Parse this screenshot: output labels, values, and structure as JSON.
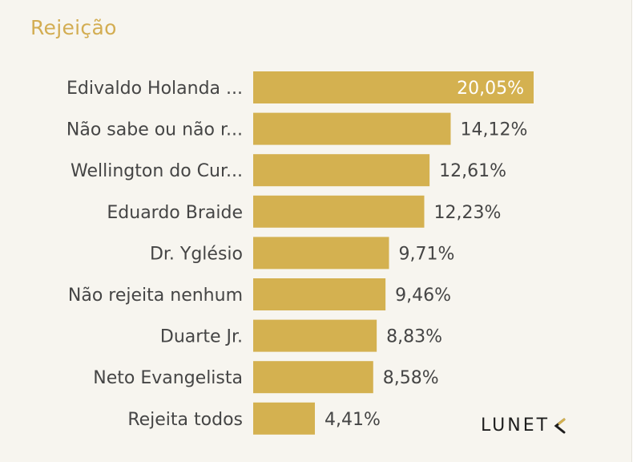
{
  "chart_data": {
    "type": "bar",
    "orientation": "horizontal",
    "title": "Rejeição",
    "categories": [
      "Edivaldo Holanda ...",
      "Não sabe ou não r...",
      "Wellington do Cur...",
      "Eduardo Braide",
      "Dr. Yglésio",
      "Não rejeita nenhum",
      "Duarte Jr.",
      "Neto Evangelista",
      "Rejeita todos"
    ],
    "values": [
      20.05,
      14.12,
      12.61,
      12.23,
      9.71,
      9.46,
      8.83,
      8.58,
      4.41
    ],
    "value_labels": [
      "20,05%",
      "14,12%",
      "12,61%",
      "12,23%",
      "9,71%",
      "9,46%",
      "8,83%",
      "8,58%",
      "4,41%"
    ],
    "xlim": [
      0,
      20.05
    ],
    "grid": false,
    "bar_color": "#d4b150"
  },
  "brand": {
    "name": "LUNET",
    "accent": "#d4b150"
  }
}
